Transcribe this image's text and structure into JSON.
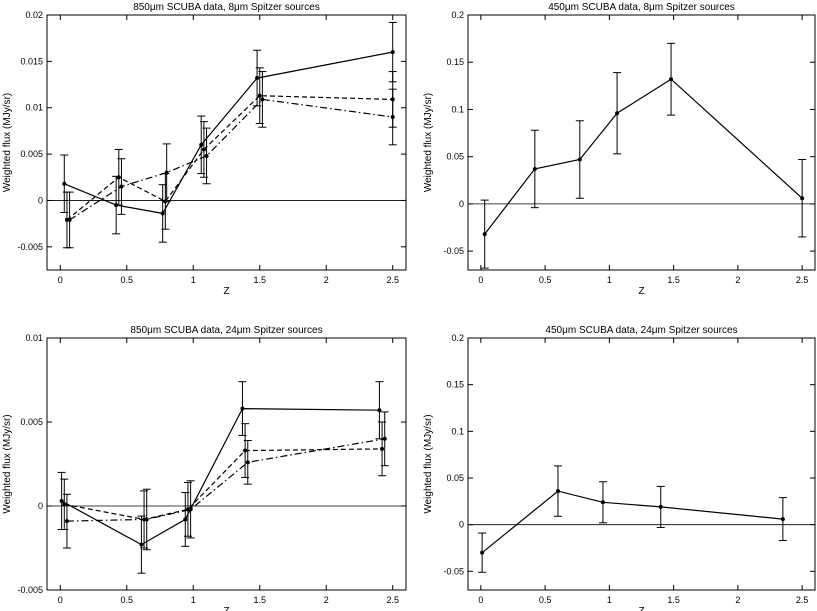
{
  "figure": {
    "chart_data": [
      {
        "type": "line",
        "title": "850μm SCUBA data, 8μm Spitzer sources",
        "xlabel": "Z",
        "ylabel": "Weighted flux (MJy/sr)",
        "xlim": [
          -0.1,
          2.6
        ],
        "ylim": [
          -0.0075,
          0.02
        ],
        "xticks": [
          0,
          0.5,
          1,
          1.5,
          2,
          2.5
        ],
        "xtick_labels": [
          "0",
          "0.5",
          "1",
          "1.5",
          "2",
          "2.5"
        ],
        "yticks": [
          -0.005,
          0,
          0.005,
          0.01,
          0.015,
          0.02
        ],
        "ytick_labels": [
          "-0.005",
          "0",
          "0.005",
          "0.01",
          "0.015",
          "0.02"
        ],
        "zero_line": true,
        "series": [
          {
            "name": "solid",
            "style": "solid",
            "x": [
              0.03,
              0.42,
              0.77,
              1.06,
              1.48,
              2.5
            ],
            "y": [
              0.0018,
              -0.0005,
              -0.0014,
              0.006,
              0.0132,
              0.016
            ],
            "err": [
              0.0031,
              0.0031,
              0.0031,
              0.0031,
              0.003,
              0.0032
            ]
          },
          {
            "name": "dashed",
            "style": "dashed",
            "x": [
              0.05,
              0.44,
              0.79,
              1.08,
              1.5,
              2.5
            ],
            "y": [
              -0.0021,
              0.0025,
              -0.0001,
              0.0055,
              0.0113,
              0.0109
            ],
            "err": [
              0.003,
              0.003,
              0.003,
              0.003,
              0.003,
              0.003
            ]
          },
          {
            "name": "dash-dot",
            "style": "dashdot",
            "x": [
              0.07,
              0.46,
              0.8,
              1.1,
              1.52,
              2.5
            ],
            "y": [
              -0.0021,
              0.0015,
              0.003,
              0.0048,
              0.0109,
              0.009
            ],
            "err": [
              0.003,
              0.003,
              0.0031,
              0.003,
              0.003,
              0.003
            ]
          }
        ]
      },
      {
        "type": "line",
        "title": "450μm SCUBA data, 8μm Spitzer sources",
        "xlabel": "Z",
        "ylabel": "Weighted flux (MJy/sr)",
        "xlim": [
          -0.1,
          2.6
        ],
        "ylim": [
          -0.07,
          0.2
        ],
        "xticks": [
          0,
          0.5,
          1,
          1.5,
          2,
          2.5
        ],
        "xtick_labels": [
          "0",
          "0.5",
          "1",
          "1.5",
          "2",
          "2.5"
        ],
        "yticks": [
          -0.05,
          0,
          0.05,
          0.1,
          0.15,
          0.2
        ],
        "ytick_labels": [
          "-0.05",
          "0",
          "0.05",
          "0.1",
          "0.15",
          "0.2"
        ],
        "zero_line": true,
        "series": [
          {
            "name": "solid",
            "style": "solid",
            "x": [
              0.03,
              0.42,
              0.77,
              1.06,
              1.48,
              2.5
            ],
            "y": [
              -0.032,
              0.037,
              0.047,
              0.096,
              0.132,
              0.006
            ],
            "err": [
              0.036,
              0.041,
              0.041,
              0.043,
              0.038,
              0.041
            ]
          }
        ]
      },
      {
        "type": "line",
        "title": "850μm SCUBA data, 24μm Spitzer sources",
        "xlabel": "Z",
        "ylabel": "Weighted flux (MJy/sr)",
        "xlim": [
          -0.1,
          2.6
        ],
        "ylim": [
          -0.005,
          0.01
        ],
        "xticks": [
          0,
          0.5,
          1,
          1.5,
          2,
          2.5
        ],
        "xtick_labels": [
          "0",
          "0.5",
          "1",
          "1.5",
          "2",
          "2.5"
        ],
        "yticks": [
          -0.005,
          0,
          0.005,
          0.01
        ],
        "ytick_labels": [
          "-0.005",
          "0",
          "0.005",
          "0.01"
        ],
        "zero_line": true,
        "series": [
          {
            "name": "solid",
            "style": "solid",
            "x": [
              0.01,
              0.61,
              0.94,
              1.37,
              2.4
            ],
            "y": [
              0.0003,
              -0.0023,
              -0.0008,
              0.0058,
              0.0057
            ],
            "err": [
              0.0017,
              0.0017,
              0.0016,
              0.0016,
              0.0017
            ]
          },
          {
            "name": "dashed",
            "style": "dashed",
            "x": [
              0.03,
              0.63,
              0.96,
              1.39,
              2.42
            ],
            "y": [
              0.0001,
              -0.0008,
              -0.0002,
              0.0033,
              0.0034
            ],
            "err": [
              0.0015,
              0.0017,
              0.0016,
              0.0016,
              0.0016
            ]
          },
          {
            "name": "dash-dot",
            "style": "dashdot",
            "x": [
              0.05,
              0.65,
              0.98,
              1.41,
              2.44
            ],
            "y": [
              -0.0009,
              -0.0008,
              -0.0002,
              0.0026,
              0.004
            ],
            "err": [
              0.0016,
              0.0018,
              0.0017,
              0.0013,
              0.0016
            ]
          }
        ]
      },
      {
        "type": "line",
        "title": "450μm SCUBA data, 24μm Spitzer sources",
        "xlabel": "Z",
        "ylabel": "Weighted flux (MJy/sr)",
        "xlim": [
          -0.1,
          2.6
        ],
        "ylim": [
          -0.07,
          0.2
        ],
        "xticks": [
          0,
          0.5,
          1,
          1.5,
          2,
          2.5
        ],
        "xtick_labels": [
          "0",
          "0.5",
          "1",
          "1.5",
          "2",
          "2.5"
        ],
        "yticks": [
          -0.05,
          0,
          0.05,
          0.1,
          0.15,
          0.2
        ],
        "ytick_labels": [
          "-0.05",
          "0",
          "0.05",
          "0.1",
          "0.15",
          "0.2"
        ],
        "zero_line": true,
        "series": [
          {
            "name": "solid",
            "style": "solid",
            "x": [
              0.01,
              0.6,
              0.95,
              1.4,
              2.35
            ],
            "y": [
              -0.03,
              0.036,
              0.024,
              0.019,
              0.006
            ],
            "err": [
              0.021,
              0.027,
              0.022,
              0.022,
              0.023
            ]
          }
        ]
      }
    ]
  }
}
